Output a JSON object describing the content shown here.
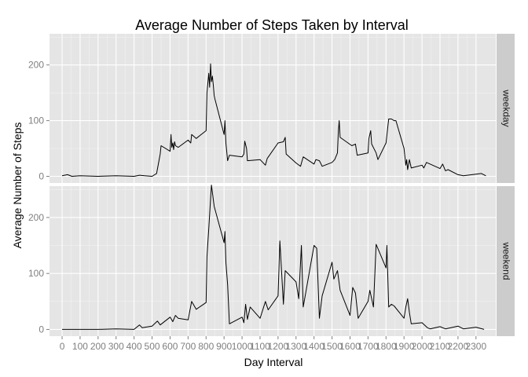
{
  "chart_data": {
    "type": "line",
    "title": "Average Number of Steps Taken by Interval",
    "xlabel": "Day Interval",
    "ylabel": "Average Number of Steps",
    "xlim": [
      -70,
      2410
    ],
    "x_ticks": [
      0,
      100,
      200,
      300,
      400,
      500,
      600,
      700,
      800,
      900,
      1000,
      1100,
      1200,
      1300,
      1400,
      1500,
      1600,
      1700,
      1800,
      1900,
      2000,
      2100,
      2200,
      2300
    ],
    "x_tick_labels": [
      "0",
      "100",
      "200",
      "300",
      "400",
      "500",
      "600",
      "700",
      "800",
      "900",
      "1000",
      "1100",
      "1200",
      "1300",
      "1400",
      "1500",
      "1600",
      "1700",
      "1800",
      "1900",
      "2000",
      "2100",
      "2200",
      "2300"
    ],
    "ylim": [
      -12,
      256
    ],
    "y_ticks": [
      0,
      100,
      200
    ],
    "y_tick_labels": [
      "0",
      "100",
      "200"
    ],
    "grid": true,
    "facet": "rows",
    "panels": [
      {
        "label": "weekday",
        "x": [
          0,
          30,
          55,
          100,
          200,
          300,
          400,
          430,
          460,
          500,
          525,
          545,
          550,
          600,
          605,
          610,
          615,
          620,
          625,
          630,
          645,
          700,
          715,
          720,
          745,
          800,
          805,
          815,
          820,
          825,
          830,
          835,
          840,
          845,
          850,
          900,
          905,
          910,
          920,
          930,
          1000,
          1010,
          1015,
          1025,
          1030,
          1100,
          1130,
          1140,
          1200,
          1230,
          1240,
          1245,
          1300,
          1325,
          1340,
          1400,
          1410,
          1430,
          1445,
          1500,
          1515,
          1530,
          1535,
          1540,
          1545,
          1610,
          1630,
          1640,
          1700,
          1705,
          1715,
          1720,
          1745,
          1755,
          1800,
          1815,
          1830,
          1845,
          1855,
          1900,
          1910,
          1915,
          1920,
          1930,
          1940,
          2000,
          2010,
          2025,
          2100,
          2115,
          2130,
          2145,
          2200,
          2230,
          2330,
          2355
        ],
        "values": [
          1,
          3,
          0,
          1,
          0,
          1,
          0,
          2,
          1,
          0,
          5,
          40,
          55,
          45,
          75,
          52,
          60,
          48,
          62,
          55,
          52,
          65,
          60,
          75,
          68,
          82,
          150,
          185,
          160,
          202,
          170,
          180,
          165,
          145,
          138,
          75,
          100,
          60,
          28,
          38,
          35,
          40,
          63,
          50,
          28,
          30,
          20,
          32,
          60,
          62,
          70,
          40,
          24,
          18,
          35,
          22,
          30,
          28,
          18,
          25,
          30,
          42,
          80,
          100,
          70,
          55,
          58,
          38,
          42,
          68,
          82,
          58,
          42,
          30,
          60,
          103,
          103,
          100,
          100,
          50,
          20,
          30,
          12,
          30,
          15,
          20,
          15,
          25,
          14,
          22,
          10,
          12,
          3,
          1,
          5,
          1
        ]
      },
      {
        "label": "weekend",
        "x": [
          0,
          100,
          200,
          300,
          400,
          430,
          445,
          500,
          530,
          545,
          600,
          615,
          630,
          645,
          700,
          720,
          745,
          800,
          805,
          815,
          830,
          845,
          900,
          905,
          910,
          920,
          930,
          1000,
          1010,
          1020,
          1030,
          1045,
          1100,
          1110,
          1130,
          1145,
          1200,
          1210,
          1230,
          1240,
          1300,
          1315,
          1330,
          1340,
          1400,
          1415,
          1430,
          1445,
          1500,
          1510,
          1530,
          1545,
          1600,
          1615,
          1630,
          1645,
          1700,
          1710,
          1730,
          1745,
          1800,
          1805,
          1815,
          1830,
          1845,
          1900,
          1910,
          1920,
          1930,
          1940,
          2000,
          2030,
          2045,
          2100,
          2130,
          2200,
          2230,
          2300,
          2345
        ],
        "values": [
          0,
          0,
          0,
          1,
          0,
          8,
          3,
          6,
          15,
          8,
          22,
          14,
          25,
          20,
          17,
          50,
          36,
          48,
          130,
          180,
          258,
          220,
          155,
          175,
          120,
          80,
          10,
          22,
          12,
          45,
          18,
          40,
          20,
          30,
          50,
          35,
          60,
          158,
          45,
          105,
          85,
          55,
          150,
          40,
          150,
          145,
          20,
          60,
          120,
          90,
          105,
          70,
          25,
          75,
          65,
          20,
          50,
          70,
          40,
          152,
          110,
          150,
          40,
          45,
          42,
          20,
          40,
          55,
          30,
          10,
          12,
          3,
          1,
          5,
          1,
          6,
          1,
          4,
          0
        ]
      }
    ]
  }
}
